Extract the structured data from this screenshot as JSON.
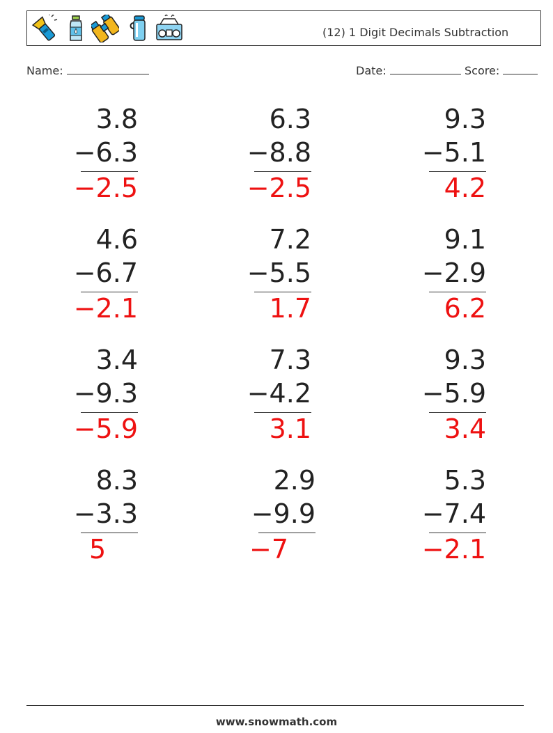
{
  "header": {
    "title": "(12) 1 Digit Decimals Subtraction",
    "icons": [
      "flashlight-icon",
      "water-bottle-icon",
      "binoculars-icon",
      "thermos-icon",
      "boombox-icon"
    ]
  },
  "meta": {
    "name_label": "Name:",
    "date_label": "Date:",
    "score_label": "Score:"
  },
  "problems": [
    {
      "a": "3.8",
      "b": "−6.3",
      "answer": "−2.5"
    },
    {
      "a": "6.3",
      "b": "−8.8",
      "answer": "−2.5"
    },
    {
      "a": "9.3",
      "b": "−5.1",
      "answer": "4.2"
    },
    {
      "a": "4.6",
      "b": "−6.7",
      "answer": "−2.1"
    },
    {
      "a": "7.2",
      "b": "−5.5",
      "answer": "1.7"
    },
    {
      "a": "9.1",
      "b": "−2.9",
      "answer": "6.2"
    },
    {
      "a": "3.4",
      "b": "−9.3",
      "answer": "−5.9"
    },
    {
      "a": "7.3",
      "b": "−4.2",
      "answer": "3.1"
    },
    {
      "a": "9.3",
      "b": "−5.9",
      "answer": "3.4"
    },
    {
      "a": "8.3",
      "b": "−3.3",
      "answer": "5"
    },
    {
      "a": "2.9",
      "b": "−9.9",
      "answer": "−7"
    },
    {
      "a": "5.3",
      "b": "−7.4",
      "answer": "−2.1"
    }
  ],
  "colors": {
    "answer": "#ee1111",
    "text": "#222222"
  },
  "footer": {
    "site": "www.snowmath.com"
  }
}
